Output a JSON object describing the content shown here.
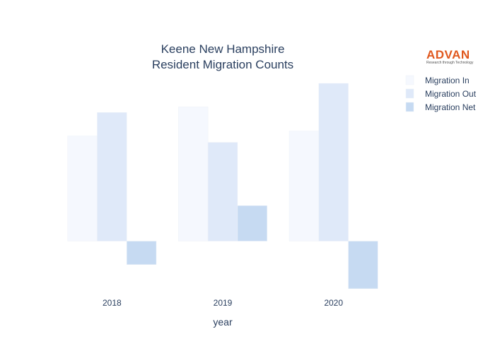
{
  "chart_data": {
    "type": "bar",
    "title": "Keene New Hampshire\nResident Migration Counts",
    "title_lines": [
      "Keene New Hampshire",
      "Resident Migration Counts"
    ],
    "xlabel": "year",
    "ylabel": "",
    "categories": [
      "2018",
      "2019",
      "2020"
    ],
    "series": [
      {
        "name": "Migration In",
        "values": [
          148,
          189,
          155
        ],
        "color": "#f5f8fe"
      },
      {
        "name": "Migration Out",
        "values": [
          181,
          139,
          222
        ],
        "color": "#dfe9f9"
      },
      {
        "name": "Migration Net",
        "values": [
          -33,
          50,
          -67
        ],
        "color": "#c6daf2"
      }
    ],
    "ylim": [
      -72,
      235
    ],
    "grid": false,
    "legend_position": "top-right",
    "y_tick_labels_shown": false
  },
  "branding": {
    "logo_text": "ADVAN",
    "logo_tagline": "Research through Technology",
    "logo_color": "#e0581e"
  }
}
